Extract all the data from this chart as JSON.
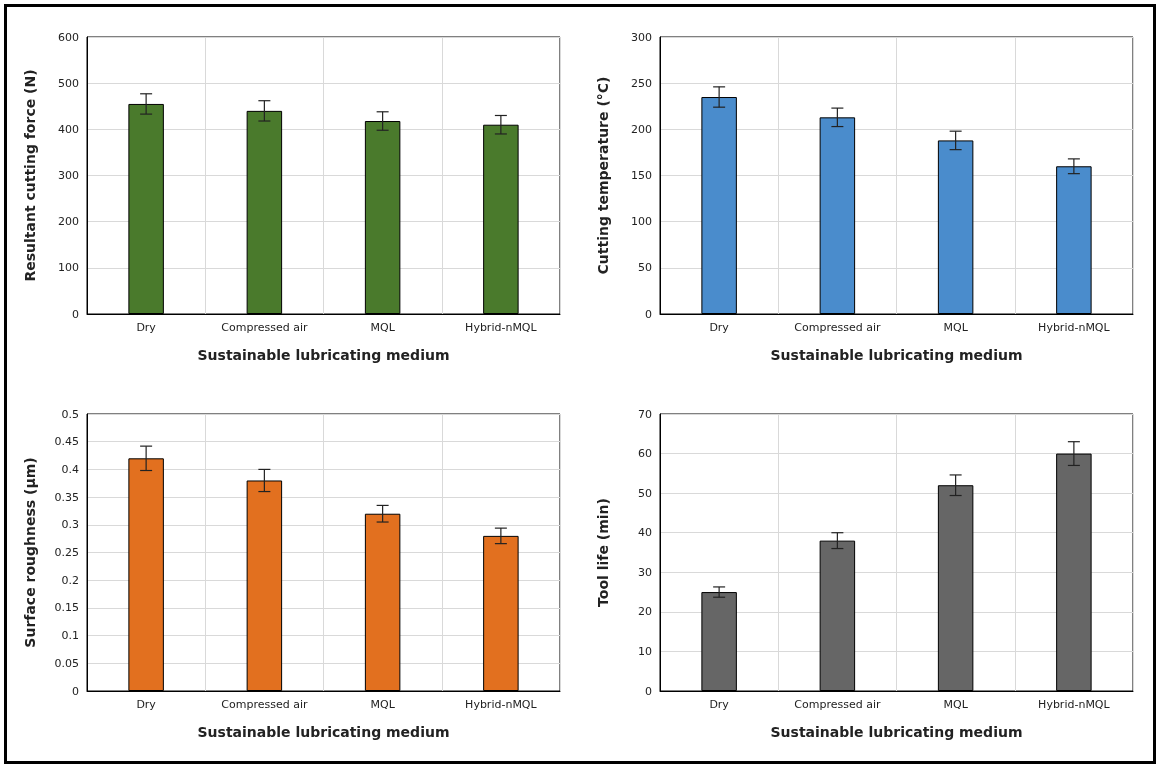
{
  "chart_data": [
    {
      "type": "bar",
      "categories": [
        "Dry",
        "Compressed air",
        "MQL",
        "Hybrid-nMQL"
      ],
      "values": [
        455,
        440,
        418,
        410
      ],
      "errors": [
        22,
        22,
        20,
        20
      ],
      "color": "#4a7a2c",
      "xlabel": "Sustainable lubricating medium",
      "ylabel": "Resultant cutting force (N)",
      "ylim": [
        0,
        600
      ],
      "yticks": [
        0,
        100,
        200,
        300,
        400,
        500,
        600
      ],
      "grid": true
    },
    {
      "type": "bar",
      "categories": [
        "Dry",
        "Compressed air",
        "MQL",
        "Hybrid-nMQL"
      ],
      "values": [
        235,
        213,
        188,
        160
      ],
      "errors": [
        11,
        10,
        10,
        8
      ],
      "color": "#4a8ccc",
      "xlabel": "Sustainable lubricating medium",
      "ylabel": "Cutting temperature (°C)",
      "ylim": [
        0,
        300
      ],
      "yticks": [
        0,
        50,
        100,
        150,
        200,
        250,
        300
      ],
      "grid": true
    },
    {
      "type": "bar",
      "categories": [
        "Dry",
        "Compressed air",
        "MQL",
        "Hybrid-nMQL"
      ],
      "values": [
        0.42,
        0.38,
        0.32,
        0.28
      ],
      "errors": [
        0.022,
        0.02,
        0.015,
        0.014
      ],
      "color": "#e2701f",
      "xlabel": "Sustainable lubricating medium",
      "ylabel": "Surface roughness (µm)",
      "ylim": [
        0,
        0.5
      ],
      "yticks": [
        0,
        0.05,
        0.1,
        0.15,
        0.2,
        0.25,
        0.3,
        0.35,
        0.4,
        0.45,
        0.5
      ],
      "grid": true
    },
    {
      "type": "bar",
      "categories": [
        "Dry",
        "Compressed air",
        "MQL",
        "Hybrid-nMQL"
      ],
      "values": [
        25,
        38,
        52,
        60
      ],
      "errors": [
        1.3,
        2,
        2.6,
        3
      ],
      "color": "#666666",
      "xlabel": "Sustainable lubricating medium",
      "ylabel": "Tool life (min)",
      "ylim": [
        0,
        70
      ],
      "yticks": [
        0,
        10,
        20,
        30,
        40,
        50,
        60,
        70
      ],
      "grid": true
    }
  ]
}
